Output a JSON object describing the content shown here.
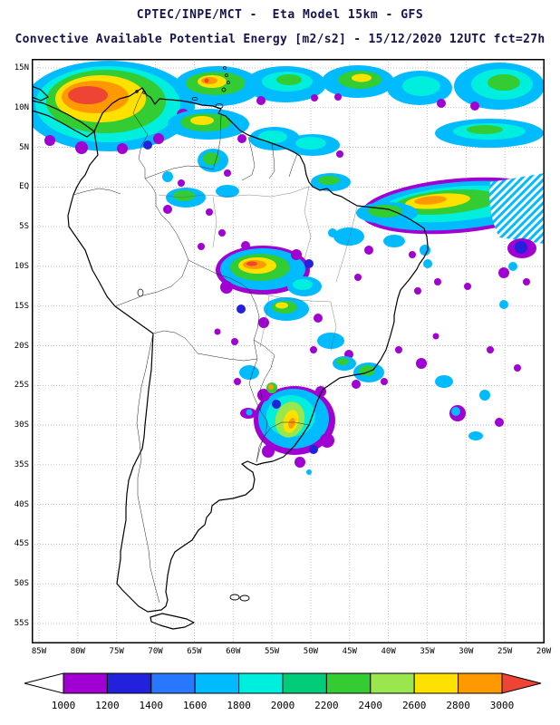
{
  "header": {
    "line1": "CPTEC/INPE/MCT -  Eta Model 15km - GFS",
    "line2": "Convective Available Potential Energy [m2/s2] - 15/12/2020 12UTC fct=27h"
  },
  "map": {
    "lat_labels": [
      "15N",
      "10N",
      "5N",
      "EQ",
      "5S",
      "10S",
      "15S",
      "20S",
      "25S",
      "30S",
      "35S",
      "40S",
      "45S",
      "50S",
      "55S"
    ],
    "lon_labels": [
      "85W",
      "80W",
      "75W",
      "70W",
      "65W",
      "60W",
      "55W",
      "50W",
      "45W",
      "40W",
      "35W",
      "30W",
      "25W",
      "20W"
    ]
  },
  "colorbar": {
    "tick_labels": [
      "1000",
      "1200",
      "1400",
      "1600",
      "1800",
      "2000",
      "2200",
      "2400",
      "2600",
      "2800",
      "3000"
    ],
    "colors": [
      "#ffffff",
      "#a000d2",
      "#2222dd",
      "#2877ff",
      "#00bbff",
      "#00eedd",
      "#00cc7a",
      "#33cc33",
      "#99e64d",
      "#ffe100",
      "#ff9900",
      "#ee4433"
    ]
  },
  "chart_data": {
    "type": "heatmap",
    "title": "Convective Available Potential Energy [m2/s2]",
    "model": "Eta Model 15km - GFS",
    "valid": "15/12/2020 12UTC fct=27h",
    "levels": [
      1000,
      1200,
      1400,
      1600,
      1800,
      2000,
      2200,
      2400,
      2600,
      2800,
      3000
    ],
    "lat_range": [
      "15N",
      "55S"
    ],
    "lon_range": [
      "85W",
      "20W"
    ],
    "legend_position": "bottom"
  }
}
